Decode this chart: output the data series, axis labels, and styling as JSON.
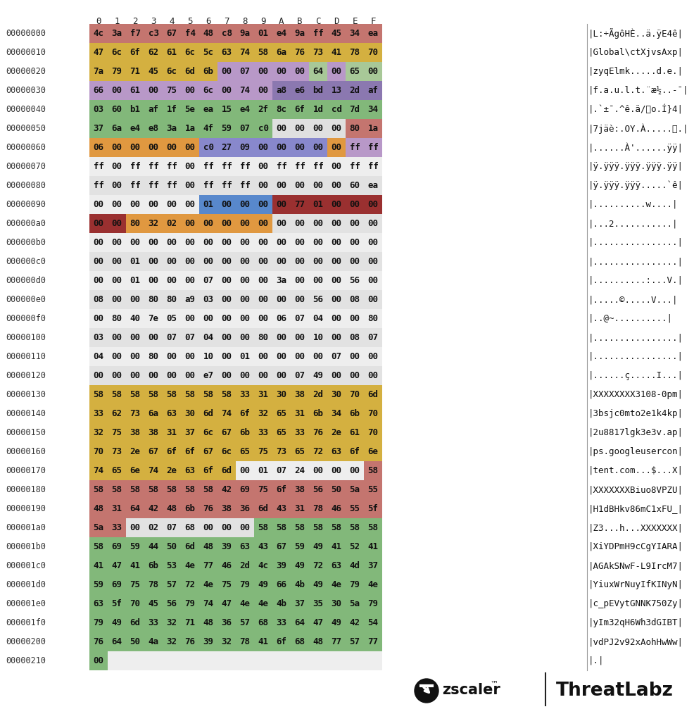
{
  "header_cols": [
    "0",
    "1",
    "2",
    "3",
    "4",
    "5",
    "6",
    "7",
    "8",
    "9",
    "A",
    "B",
    "C",
    "D",
    "E",
    "F"
  ],
  "rows": [
    {
      "addr": "00000000",
      "bytes": [
        "4c",
        "3a",
        "f7",
        "c3",
        "67",
        "f4",
        "48",
        "c8",
        "9a",
        "01",
        "e4",
        "9a",
        "ff",
        "45",
        "34",
        "ea"
      ],
      "ascii_str": "|L:÷ÃgôHÈ..ä.ÿE4ê|"
    },
    {
      "addr": "00000010",
      "bytes": [
        "47",
        "6c",
        "6f",
        "62",
        "61",
        "6c",
        "5c",
        "63",
        "74",
        "58",
        "6a",
        "76",
        "73",
        "41",
        "78",
        "70"
      ],
      "ascii_str": "|Global\\ctXjvsAxp|"
    },
    {
      "addr": "00000020",
      "bytes": [
        "7a",
        "79",
        "71",
        "45",
        "6c",
        "6d",
        "6b",
        "00",
        "07",
        "00",
        "00",
        "00",
        "64",
        "00",
        "65",
        "00"
      ],
      "ascii_str": "|zyqElmk.....d.e.|"
    },
    {
      "addr": "00000030",
      "bytes": [
        "66",
        "00",
        "61",
        "00",
        "75",
        "00",
        "6c",
        "00",
        "74",
        "00",
        "a8",
        "e6",
        "bd",
        "13",
        "2d",
        "af"
      ],
      "ascii_str": "|f.a.u.l.t.¨æ½..-¯|"
    },
    {
      "addr": "00000040",
      "bytes": [
        "03",
        "60",
        "b1",
        "af",
        "1f",
        "5e",
        "ea",
        "15",
        "e4",
        "2f",
        "8c",
        "6f",
        "1d",
        "cd",
        "7d",
        "34"
      ],
      "ascii_str": "|.`±¯.^ê.ä/o.Í}4|"
    },
    {
      "addr": "00000050",
      "bytes": [
        "37",
        "6a",
        "e4",
        "e8",
        "3a",
        "1a",
        "4f",
        "59",
        "07",
        "c0",
        "00",
        "00",
        "00",
        "00",
        "80",
        "1a"
      ],
      "ascii_str": "|7jäè:.OY.À......|"
    },
    {
      "addr": "00000060",
      "bytes": [
        "06",
        "00",
        "00",
        "00",
        "00",
        "00",
        "c0",
        "27",
        "09",
        "00",
        "00",
        "00",
        "00",
        "00",
        "ff",
        "ff"
      ],
      "ascii_str": "|......À'......ÿÿ|"
    },
    {
      "addr": "00000070",
      "bytes": [
        "ff",
        "00",
        "ff",
        "ff",
        "ff",
        "00",
        "ff",
        "ff",
        "ff",
        "00",
        "ff",
        "ff",
        "ff",
        "00",
        "ff",
        "ff"
      ],
      "ascii_str": "|ÿ.ÿÿÿ.ÿÿÿ.ÿÿÿ.ÿÿ|"
    },
    {
      "addr": "00000080",
      "bytes": [
        "ff",
        "00",
        "ff",
        "ff",
        "ff",
        "00",
        "ff",
        "ff",
        "ff",
        "00",
        "00",
        "00",
        "00",
        "00",
        "60",
        "ea"
      ],
      "ascii_str": "|ÿ.ÿÿÿ.ÿÿÿ.....`ê|"
    },
    {
      "addr": "00000090",
      "bytes": [
        "00",
        "00",
        "00",
        "00",
        "00",
        "00",
        "01",
        "00",
        "00",
        "00",
        "00",
        "77",
        "01",
        "00",
        "00",
        "00"
      ],
      "ascii_str": "|..........w....|"
    },
    {
      "addr": "000000a0",
      "bytes": [
        "00",
        "00",
        "80",
        "32",
        "02",
        "00",
        "00",
        "00",
        "00",
        "00",
        "00",
        "00",
        "00",
        "00",
        "00",
        "00"
      ],
      "ascii_str": "|...2...........|"
    },
    {
      "addr": "000000b0",
      "bytes": [
        "00",
        "00",
        "00",
        "00",
        "00",
        "00",
        "00",
        "00",
        "00",
        "00",
        "00",
        "00",
        "00",
        "00",
        "00",
        "00"
      ],
      "ascii_str": "|................|"
    },
    {
      "addr": "000000c0",
      "bytes": [
        "00",
        "00",
        "01",
        "00",
        "00",
        "00",
        "00",
        "00",
        "00",
        "00",
        "00",
        "00",
        "00",
        "00",
        "00",
        "00"
      ],
      "ascii_str": "|................|"
    },
    {
      "addr": "000000d0",
      "bytes": [
        "00",
        "00",
        "01",
        "00",
        "00",
        "00",
        "07",
        "00",
        "00",
        "00",
        "3a",
        "00",
        "00",
        "00",
        "56",
        "00"
      ],
      "ascii_str": "|..........:...V.|"
    },
    {
      "addr": "000000e0",
      "bytes": [
        "08",
        "00",
        "00",
        "80",
        "80",
        "a9",
        "03",
        "00",
        "00",
        "00",
        "00",
        "00",
        "56",
        "00",
        "08",
        "00"
      ],
      "ascii_str": "|.....©.....V...|"
    },
    {
      "addr": "000000f0",
      "bytes": [
        "00",
        "80",
        "40",
        "7e",
        "05",
        "00",
        "00",
        "00",
        "00",
        "00",
        "06",
        "07",
        "04",
        "00",
        "00",
        "80"
      ],
      "ascii_str": "|..@~..........|"
    },
    {
      "addr": "00000100",
      "bytes": [
        "03",
        "00",
        "00",
        "00",
        "07",
        "07",
        "04",
        "00",
        "00",
        "80",
        "00",
        "00",
        "10",
        "00",
        "08",
        "07"
      ],
      "ascii_str": "|................|"
    },
    {
      "addr": "00000110",
      "bytes": [
        "04",
        "00",
        "00",
        "80",
        "00",
        "00",
        "10",
        "00",
        "01",
        "00",
        "00",
        "00",
        "00",
        "07",
        "00",
        "00"
      ],
      "ascii_str": "|................|"
    },
    {
      "addr": "00000120",
      "bytes": [
        "00",
        "00",
        "00",
        "00",
        "00",
        "00",
        "e7",
        "00",
        "00",
        "00",
        "00",
        "07",
        "49",
        "00",
        "00",
        "00"
      ],
      "ascii_str": "|......ç.....I...|"
    },
    {
      "addr": "00000130",
      "bytes": [
        "58",
        "58",
        "58",
        "58",
        "58",
        "58",
        "58",
        "58",
        "33",
        "31",
        "30",
        "38",
        "2d",
        "30",
        "70",
        "6d"
      ],
      "ascii_str": "|XXXXXXXX3108-0pm|"
    },
    {
      "addr": "00000140",
      "bytes": [
        "33",
        "62",
        "73",
        "6a",
        "63",
        "30",
        "6d",
        "74",
        "6f",
        "32",
        "65",
        "31",
        "6b",
        "34",
        "6b",
        "70"
      ],
      "ascii_str": "|3bsjc0mto2e1k4kp|"
    },
    {
      "addr": "00000150",
      "bytes": [
        "32",
        "75",
        "38",
        "38",
        "31",
        "37",
        "6c",
        "67",
        "6b",
        "33",
        "65",
        "33",
        "76",
        "2e",
        "61",
        "70"
      ],
      "ascii_str": "|2u8817lgk3e3v.ap|"
    },
    {
      "addr": "00000160",
      "bytes": [
        "70",
        "73",
        "2e",
        "67",
        "6f",
        "6f",
        "67",
        "6c",
        "65",
        "75",
        "73",
        "65",
        "72",
        "63",
        "6f",
        "6e"
      ],
      "ascii_str": "|ps.googleusercon|"
    },
    {
      "addr": "00000170",
      "bytes": [
        "74",
        "65",
        "6e",
        "74",
        "2e",
        "63",
        "6f",
        "6d",
        "00",
        "01",
        "07",
        "24",
        "00",
        "00",
        "00",
        "58"
      ],
      "ascii_str": "|tent.com...$...X|"
    },
    {
      "addr": "00000180",
      "bytes": [
        "58",
        "58",
        "58",
        "58",
        "58",
        "58",
        "58",
        "42",
        "69",
        "75",
        "6f",
        "38",
        "56",
        "50",
        "5a",
        "55"
      ],
      "ascii_str": "|XXXXXXXBiuo8VPZU|"
    },
    {
      "addr": "00000190",
      "bytes": [
        "48",
        "31",
        "64",
        "42",
        "48",
        "6b",
        "76",
        "38",
        "36",
        "6d",
        "43",
        "31",
        "78",
        "46",
        "55",
        "5f"
      ],
      "ascii_str": "|H1dBHkv86mC1xFU_|"
    },
    {
      "addr": "000001a0",
      "bytes": [
        "5a",
        "33",
        "00",
        "02",
        "07",
        "68",
        "00",
        "00",
        "00",
        "58",
        "58",
        "58",
        "58",
        "58",
        "58",
        "58"
      ],
      "ascii_str": "|Z3...h...XXXXXXX|"
    },
    {
      "addr": "000001b0",
      "bytes": [
        "58",
        "69",
        "59",
        "44",
        "50",
        "6d",
        "48",
        "39",
        "63",
        "43",
        "67",
        "59",
        "49",
        "41",
        "52",
        "41"
      ],
      "ascii_str": "|XiYDPmH9cCgYIARA|"
    },
    {
      "addr": "000001c0",
      "bytes": [
        "41",
        "47",
        "41",
        "6b",
        "53",
        "4e",
        "77",
        "46",
        "2d",
        "4c",
        "39",
        "49",
        "72",
        "63",
        "4d",
        "37"
      ],
      "ascii_str": "|AGAkSNwF-L9IrcM7|"
    },
    {
      "addr": "000001d0",
      "bytes": [
        "59",
        "69",
        "75",
        "78",
        "57",
        "72",
        "4e",
        "75",
        "79",
        "49",
        "66",
        "4b",
        "49",
        "4e",
        "79",
        "4e"
      ],
      "ascii_str": "|YiuxWrNuyIfKINyN|"
    },
    {
      "addr": "000001e0",
      "bytes": [
        "63",
        "5f",
        "70",
        "45",
        "56",
        "79",
        "74",
        "47",
        "4e",
        "4e",
        "4b",
        "37",
        "35",
        "30",
        "5a",
        "79"
      ],
      "ascii_str": "|c_pEVytGNNK750Zy|"
    },
    {
      "addr": "000001f0",
      "bytes": [
        "79",
        "49",
        "6d",
        "33",
        "32",
        "71",
        "48",
        "36",
        "57",
        "68",
        "33",
        "64",
        "47",
        "49",
        "42",
        "54"
      ],
      "ascii_str": "|yIm32qH6Wh3dGIBT|"
    },
    {
      "addr": "00000200",
      "bytes": [
        "76",
        "64",
        "50",
        "4a",
        "32",
        "76",
        "39",
        "32",
        "78",
        "41",
        "6f",
        "68",
        "48",
        "77",
        "57",
        "77"
      ],
      "ascii_str": "|vdPJ2v92xAohHwWw|"
    },
    {
      "addr": "00000210",
      "bytes": [
        "00"
      ],
      "ascii_str": "|.|"
    }
  ],
  "highlights": [
    [
      {
        "s": 0,
        "e": 15,
        "c": "#c4756f"
      }
    ],
    [
      {
        "s": 0,
        "e": 15,
        "c": "#d4b040"
      }
    ],
    [
      {
        "s": 0,
        "e": 6,
        "c": "#d4b040"
      },
      {
        "s": 7,
        "e": 11,
        "c": "#b898c8"
      },
      {
        "s": 12,
        "e": 12,
        "c": "#a8c898"
      },
      {
        "s": 13,
        "e": 13,
        "c": "#b898c8"
      },
      {
        "s": 14,
        "e": 14,
        "c": "#a8c898"
      },
      {
        "s": 15,
        "e": 15,
        "c": "#a8c898"
      }
    ],
    [
      {
        "s": 0,
        "e": 9,
        "c": "#b898c8"
      },
      {
        "s": 10,
        "e": 15,
        "c": "#8b78b0"
      }
    ],
    [
      {
        "s": 0,
        "e": 15,
        "c": "#82b87a"
      }
    ],
    [
      {
        "s": 0,
        "e": 9,
        "c": "#82b87a"
      },
      {
        "s": 10,
        "e": 13,
        "c": "#e0e0e0"
      },
      {
        "s": 14,
        "e": 14,
        "c": "#c4756f"
      },
      {
        "s": 15,
        "e": 15,
        "c": "#c4756f"
      }
    ],
    [
      {
        "s": 0,
        "e": 5,
        "c": "#e09840"
      },
      {
        "s": 6,
        "e": 12,
        "c": "#8888cc"
      },
      {
        "s": 13,
        "e": 13,
        "c": "#e09840"
      },
      {
        "s": 14,
        "e": 15,
        "c": "#b898c8"
      }
    ],
    [],
    [],
    [
      {
        "s": 6,
        "e": 9,
        "c": "#5888cc"
      },
      {
        "s": 10,
        "e": 15,
        "c": "#9a3030"
      }
    ],
    [
      {
        "s": 0,
        "e": 1,
        "c": "#9a3030"
      },
      {
        "s": 2,
        "e": 9,
        "c": "#e09840"
      }
    ],
    [],
    [],
    [],
    [],
    [],
    [],
    [],
    [],
    [
      {
        "s": 0,
        "e": 15,
        "c": "#d4b040"
      }
    ],
    [
      {
        "s": 0,
        "e": 15,
        "c": "#d4b040"
      }
    ],
    [
      {
        "s": 0,
        "e": 15,
        "c": "#d4b040"
      }
    ],
    [
      {
        "s": 0,
        "e": 15,
        "c": "#d4b040"
      }
    ],
    [
      {
        "s": 0,
        "e": 7,
        "c": "#d4b040"
      },
      {
        "s": 15,
        "e": 15,
        "c": "#c4756f"
      }
    ],
    [
      {
        "s": 0,
        "e": 15,
        "c": "#c4756f"
      }
    ],
    [
      {
        "s": 0,
        "e": 15,
        "c": "#c4756f"
      }
    ],
    [
      {
        "s": 0,
        "e": 1,
        "c": "#c4756f"
      },
      {
        "s": 9,
        "e": 15,
        "c": "#82b87a"
      }
    ],
    [
      {
        "s": 0,
        "e": 15,
        "c": "#82b87a"
      }
    ],
    [
      {
        "s": 0,
        "e": 15,
        "c": "#82b87a"
      }
    ],
    [
      {
        "s": 0,
        "e": 15,
        "c": "#82b87a"
      }
    ],
    [
      {
        "s": 0,
        "e": 15,
        "c": "#82b87a"
      }
    ],
    [
      {
        "s": 0,
        "e": 15,
        "c": "#82b87a"
      }
    ],
    [
      {
        "s": 0,
        "e": 15,
        "c": "#82b87a"
      }
    ],
    [
      {
        "s": 0,
        "e": 0,
        "c": "#82b87a"
      }
    ]
  ]
}
